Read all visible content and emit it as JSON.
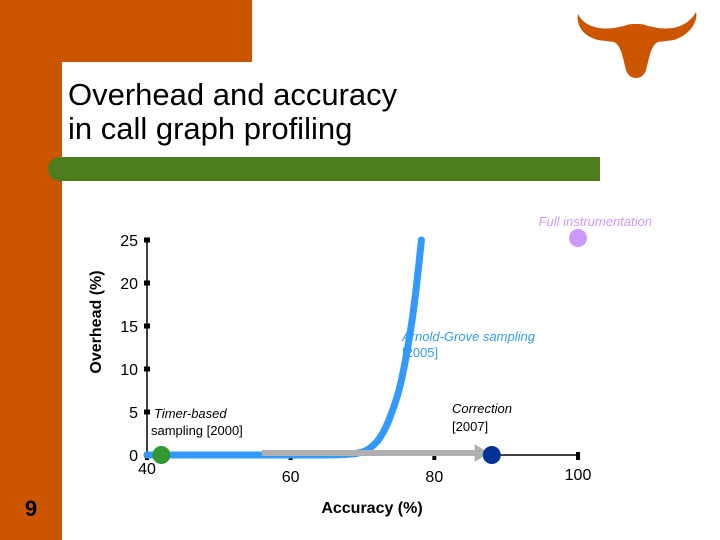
{
  "slide": {
    "title_line1": "Overhead and accuracy",
    "title_line2": "in call graph profiling",
    "page_number": "9",
    "logo_icon": "longhorn-icon",
    "colors": {
      "orange": "#cc5500",
      "green": "#4e7d1e",
      "curve": "#3399ff"
    }
  },
  "chart_data": {
    "type": "line",
    "xlabel": "Accuracy (%)",
    "ylabel": "Overhead (%)",
    "xlim": [
      40,
      100
    ],
    "ylim": [
      0,
      25
    ],
    "x_ticks": [
      "40",
      "60",
      "80",
      "100"
    ],
    "y_ticks": [
      "0",
      "5",
      "10",
      "15",
      "20",
      "25"
    ],
    "series": [
      {
        "values": [
          [
            40,
            0
          ],
          [
            55,
            0
          ],
          [
            65,
            0
          ],
          [
            69,
            0.1
          ],
          [
            71,
            0.6
          ],
          [
            73,
            2.5
          ],
          [
            75,
            7
          ],
          [
            76,
            11
          ],
          [
            77,
            16
          ],
          [
            77.7,
            21
          ],
          [
            78.2,
            25
          ]
        ]
      }
    ],
    "points": [
      {
        "label": "Full instrumentation",
        "x": 100,
        "y": 25,
        "color": "#cc99ff"
      },
      {
        "label": "Timer-based",
        "label2": "sampling [2000]",
        "x": 42,
        "y": 0,
        "color": "#339933"
      },
      {
        "label": "Correction",
        "label2": "[2007]",
        "x": 88,
        "y": 0,
        "color": "#003399"
      }
    ],
    "annotations": [
      {
        "text": "Arnold-Grove sampling",
        "text2": "[2005]",
        "color": "#3399ff"
      }
    ],
    "arrow": {
      "from_x": 56,
      "to_x": 87,
      "y": 0,
      "color": "#b0b0b0"
    }
  }
}
